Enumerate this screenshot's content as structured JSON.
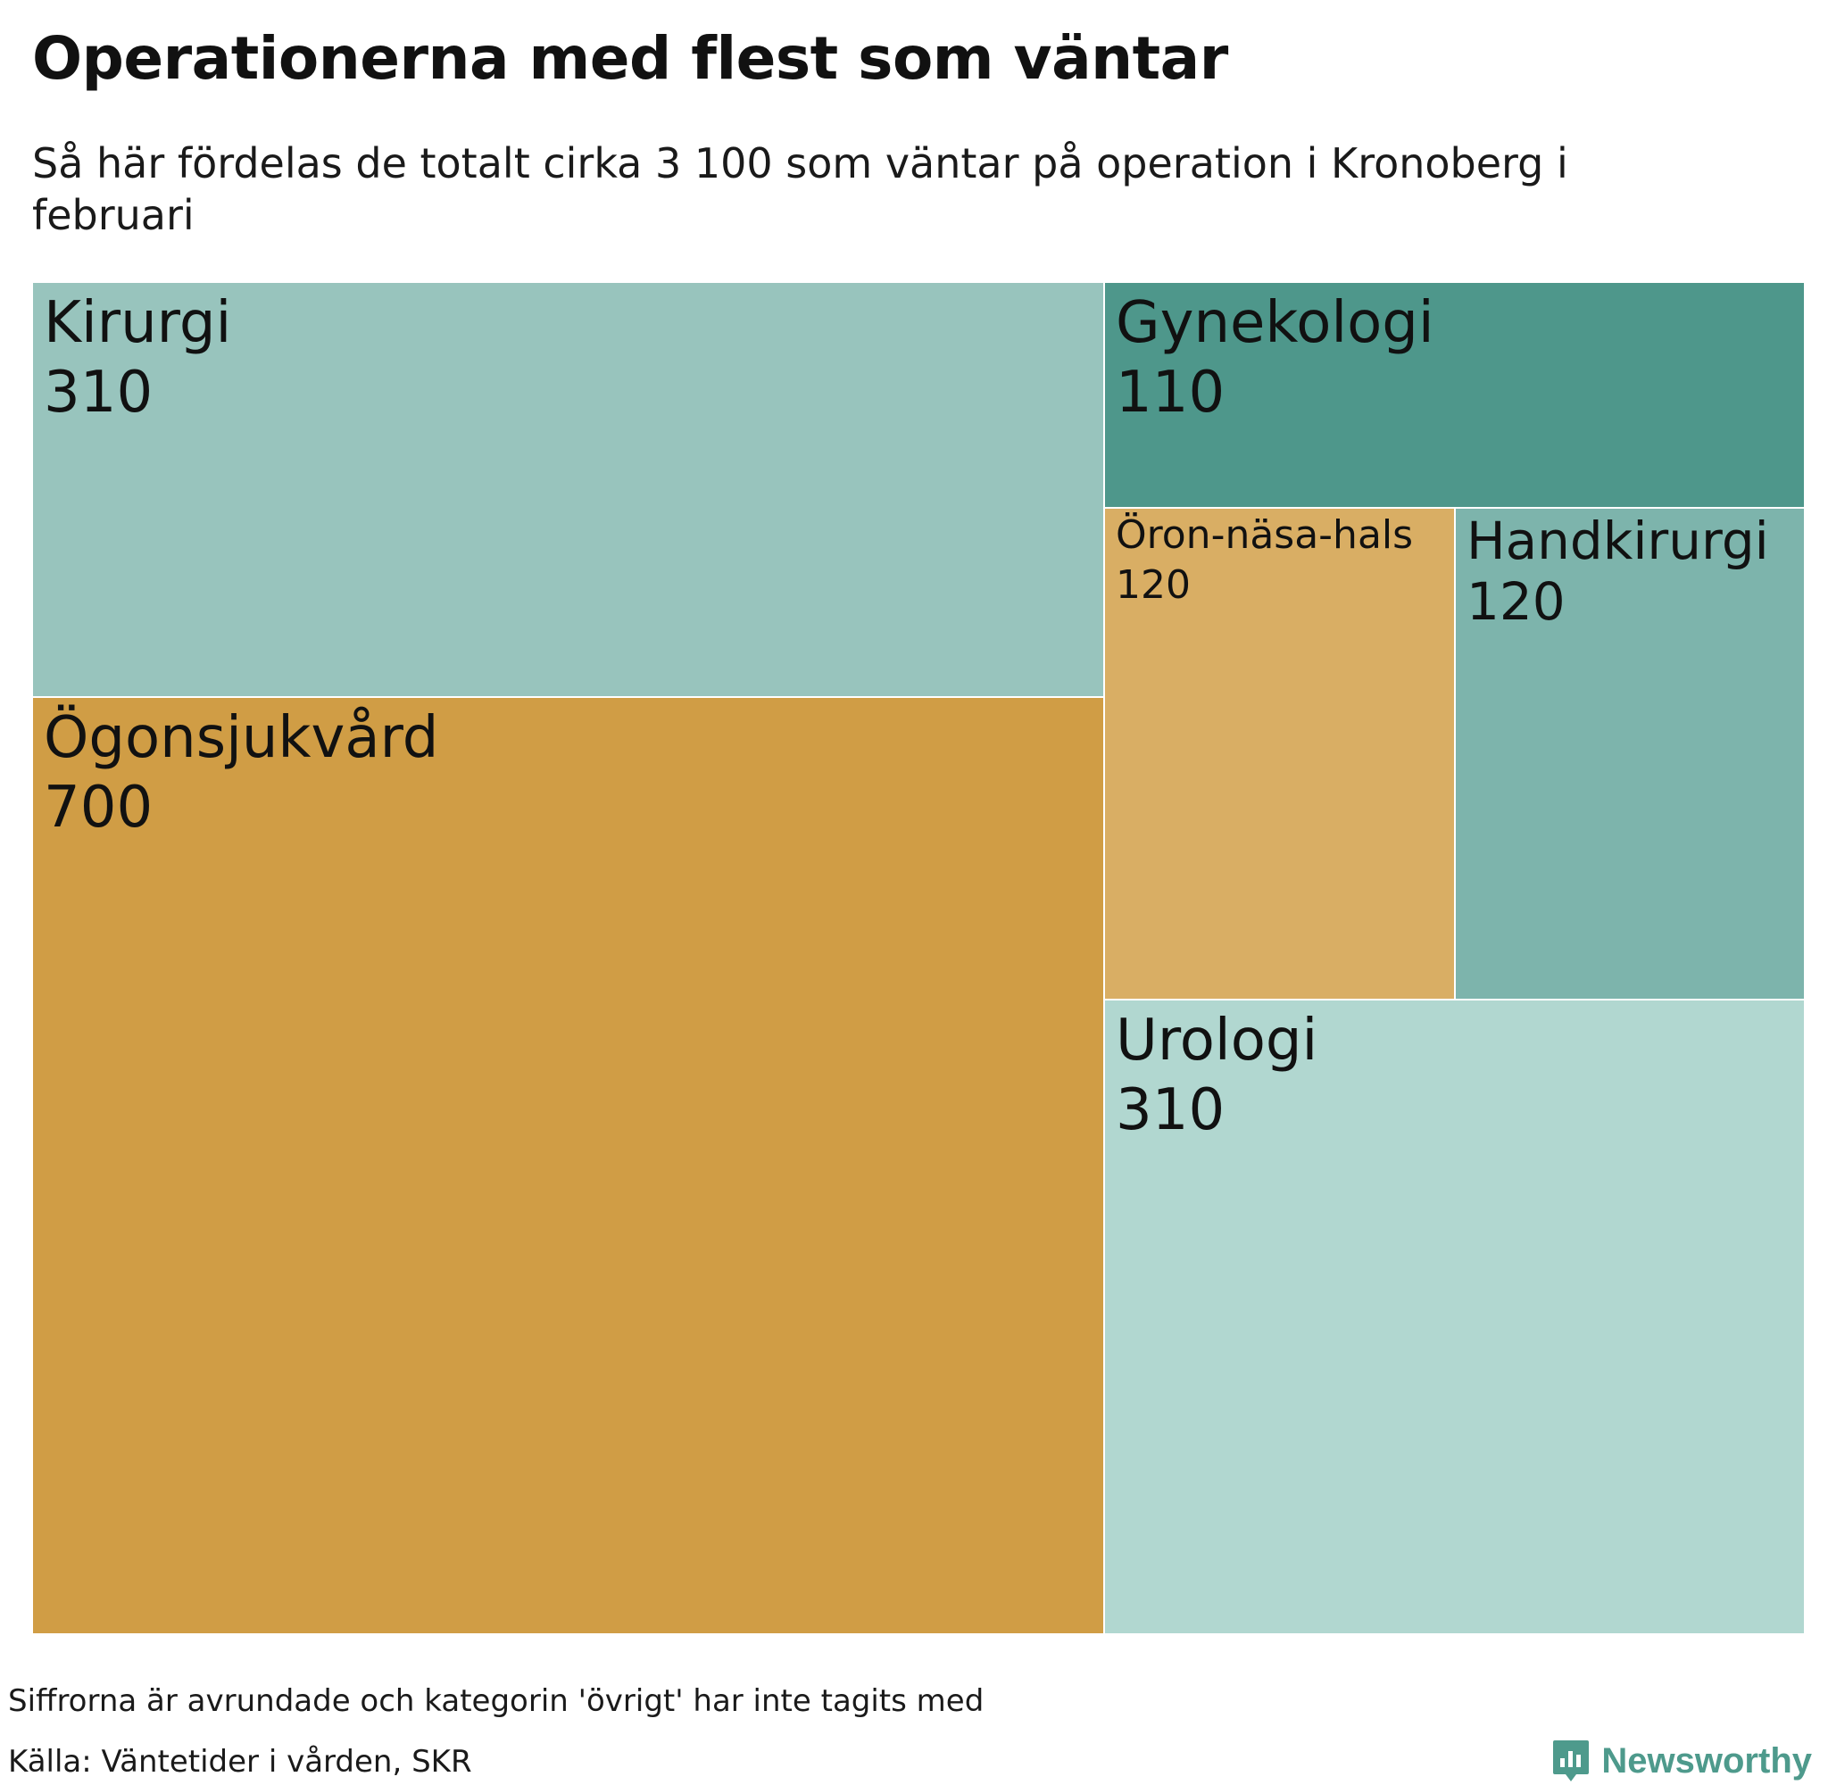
{
  "header": {
    "title": "Operationerna med flest som väntar",
    "subtitle": "Så här fördelas de totalt cirka 3 100 som väntar på operation i Kronoberg i februari"
  },
  "chart_data": {
    "type": "treemap",
    "title": "Operationerna med flest som väntar",
    "subtitle": "Så här fördelas de totalt cirka 3 100 som väntar på operation i Kronoberg i februari",
    "categories": [
      "Ögonsjukvård",
      "Kirurgi",
      "Urologi",
      "Öron-näsa-hals",
      "Handkirurgi",
      "Gynekologi"
    ],
    "values": [
      700,
      310,
      310,
      120,
      120,
      110
    ],
    "value_labels": [
      "700",
      "310",
      "310",
      "120",
      "120",
      "110"
    ],
    "colors": [
      "#d09d45",
      "#98c4bd",
      "#b1d7d0",
      "#d9ae64",
      "#7db4ac",
      "#4e978b"
    ]
  },
  "footer": {
    "note": "Siffrorna är avrundade och kategorin 'övrigt' har inte tagits med",
    "source": "Källa: Väntetider i vården, SKR",
    "brand": "Newsworthy",
    "brand_color": "#4e9a8c",
    "brand_icon": "newsworthy-logo-icon"
  }
}
